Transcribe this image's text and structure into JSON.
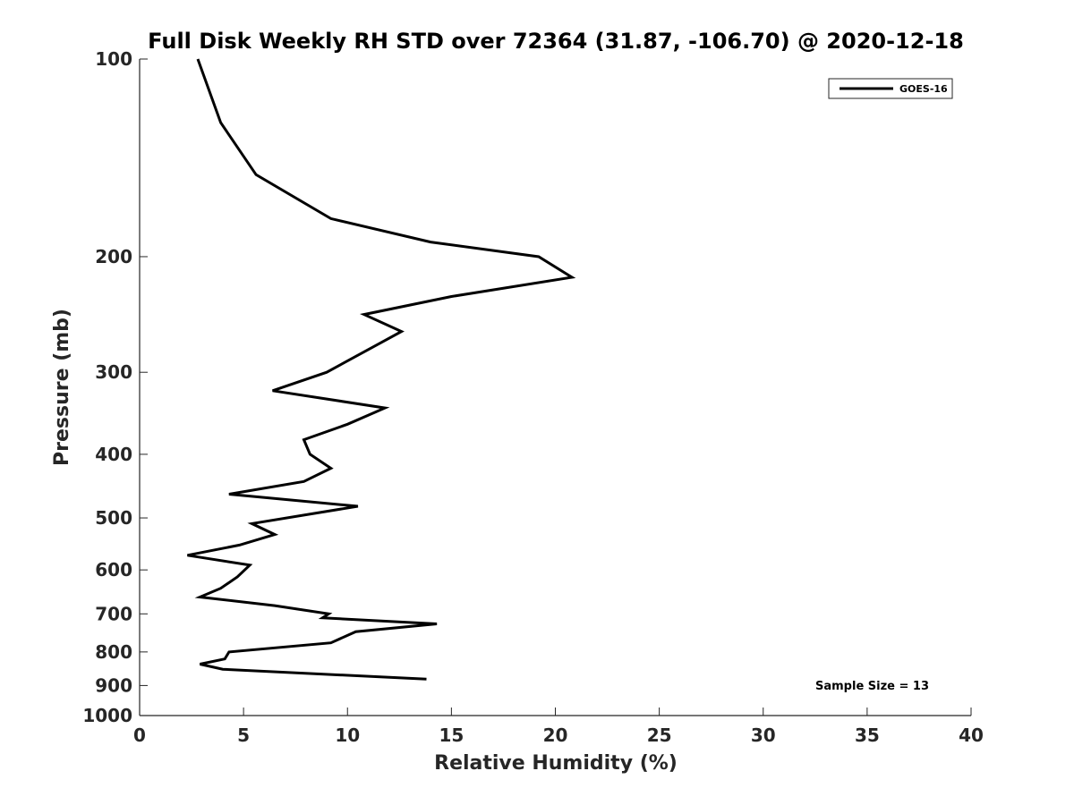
{
  "chart_data": {
    "type": "line",
    "title": "Full Disk Weekly RH STD over 72364 (31.87, -106.70) @ 2020-12-18",
    "xlabel": "Relative Humidity (%)",
    "ylabel": "Pressure (mb)",
    "xlim": [
      0,
      40
    ],
    "ylim": [
      100,
      1000
    ],
    "y_scale": "log",
    "y_reversed": true,
    "x_ticks": [
      0,
      5,
      10,
      15,
      20,
      25,
      30,
      35,
      40
    ],
    "y_ticks": [
      100,
      200,
      300,
      400,
      500,
      600,
      700,
      800,
      900,
      1000
    ],
    "grid": false,
    "legend_position": "top-right",
    "annotation": "Sample Size = 13",
    "series": [
      {
        "name": "GOES-16",
        "color": "#000000",
        "points": [
          [
            2.8,
            100
          ],
          [
            3.9,
            125
          ],
          [
            5.6,
            150
          ],
          [
            9.2,
            175
          ],
          [
            14.0,
            190
          ],
          [
            19.2,
            200
          ],
          [
            20.8,
            215
          ],
          [
            15.0,
            230
          ],
          [
            10.8,
            245
          ],
          [
            12.6,
            260
          ],
          [
            9.0,
            300
          ],
          [
            6.4,
            320
          ],
          [
            11.8,
            340
          ],
          [
            10.0,
            360
          ],
          [
            7.9,
            380
          ],
          [
            8.2,
            400
          ],
          [
            9.2,
            420
          ],
          [
            7.9,
            440
          ],
          [
            4.3,
            460
          ],
          [
            10.5,
            480
          ],
          [
            5.4,
            510
          ],
          [
            6.5,
            530
          ],
          [
            4.8,
            550
          ],
          [
            2.3,
            570
          ],
          [
            5.3,
            590
          ],
          [
            4.7,
            615
          ],
          [
            3.9,
            640
          ],
          [
            2.9,
            660
          ],
          [
            6.5,
            680
          ],
          [
            9.1,
            700
          ],
          [
            8.8,
            710
          ],
          [
            14.3,
            725
          ],
          [
            10.4,
            745
          ],
          [
            9.2,
            775
          ],
          [
            4.3,
            800
          ],
          [
            4.1,
            820
          ],
          [
            2.9,
            835
          ],
          [
            4.0,
            850
          ],
          [
            13.8,
            880
          ]
        ]
      }
    ]
  }
}
